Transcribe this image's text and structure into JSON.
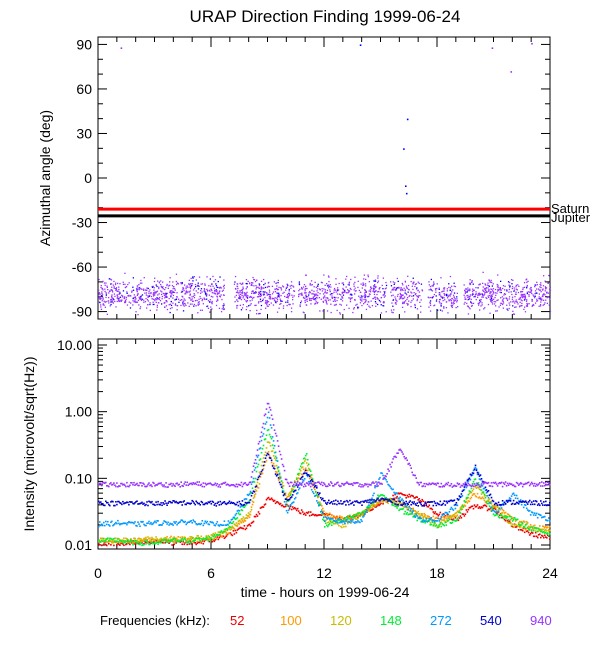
{
  "chart_data": [
    {
      "type": "scatter",
      "title": "URAP Direction Finding  1999-06-24",
      "ylabel": "Azimuthal angle (deg)",
      "xlim": [
        0,
        24
      ],
      "ylim": [
        -95,
        95
      ],
      "yticks": [
        90,
        60,
        30,
        0,
        -30,
        -60,
        -90
      ],
      "reference_lines": [
        {
          "name": "Saturn",
          "y": -21,
          "color": "#ff0000"
        },
        {
          "name": "Jupiter",
          "y": -25.5,
          "color": "#000000"
        }
      ],
      "scatter_band": {
        "center": -78,
        "spread": 7,
        "color": "#9933ff",
        "gaps": [
          [
            6.7,
            7.2
          ],
          [
            10.4,
            10.6
          ],
          [
            15.3,
            15.5
          ],
          [
            17.2,
            17.5
          ],
          [
            19.1,
            19.4
          ]
        ]
      },
      "outliers": [
        {
          "x": 1.2,
          "y": 88,
          "color": "#9933ff"
        },
        {
          "x": 13.9,
          "y": 90,
          "color": "#0000ff"
        },
        {
          "x": 16.2,
          "y": 20,
          "color": "#0000ff"
        },
        {
          "x": 16.3,
          "y": -5,
          "color": "#0000ff"
        },
        {
          "x": 16.35,
          "y": -10,
          "color": "#0000ff"
        },
        {
          "x": 16.4,
          "y": 40,
          "color": "#0000ff"
        },
        {
          "x": 20.9,
          "y": 88,
          "color": "#9933ff"
        },
        {
          "x": 21.9,
          "y": 72,
          "color": "#9933ff"
        },
        {
          "x": 23.0,
          "y": 91,
          "color": "#9933ff"
        },
        {
          "x": 11.0,
          "y": -65,
          "color": "#9933ff"
        }
      ]
    },
    {
      "type": "line",
      "ylabel": "Intensity (microvolt/sqrt(Hz))",
      "xlabel": "time - hours on 1999-06-24",
      "xlim": [
        0,
        24
      ],
      "ylim_log": [
        0.01,
        10
      ],
      "xticks": [
        0,
        6,
        12,
        18,
        24
      ],
      "xtick_labels": [
        "0",
        "6",
        "12",
        "18",
        "24"
      ],
      "yticks": [
        10,
        1,
        0.1,
        0.01
      ],
      "ytick_labels": [
        "10.00",
        "1.00",
        "0.10",
        "0.01"
      ],
      "x": [
        0,
        1,
        2,
        3,
        4,
        5,
        6,
        7,
        8,
        9,
        10,
        11,
        12,
        13,
        14,
        15,
        16,
        17,
        18,
        19,
        20,
        21,
        22,
        23,
        24
      ],
      "series": [
        {
          "name": "940",
          "color": "#9933ff",
          "values": [
            0.082,
            0.083,
            0.082,
            0.083,
            0.082,
            0.085,
            0.082,
            0.083,
            0.083,
            1.5,
            0.085,
            0.083,
            0.084,
            0.083,
            0.083,
            0.085,
            0.3,
            0.083,
            0.082,
            0.082,
            0.083,
            0.084,
            0.083,
            0.084,
            0.083
          ]
        },
        {
          "name": "540",
          "color": "#0000cc",
          "values": [
            0.044,
            0.043,
            0.044,
            0.043,
            0.044,
            0.044,
            0.043,
            0.043,
            0.044,
            0.25,
            0.045,
            0.13,
            0.045,
            0.044,
            0.044,
            0.05,
            0.044,
            0.043,
            0.043,
            0.045,
            0.15,
            0.044,
            0.045,
            0.044,
            0.043
          ]
        },
        {
          "name": "272",
          "color": "#0099ff",
          "values": [
            0.021,
            0.022,
            0.021,
            0.022,
            0.022,
            0.023,
            0.021,
            0.022,
            0.06,
            1.0,
            0.03,
            0.12,
            0.025,
            0.023,
            0.024,
            0.12,
            0.05,
            0.025,
            0.024,
            0.04,
            0.15,
            0.03,
            0.06,
            0.03,
            0.025
          ]
        },
        {
          "name": "148",
          "color": "#00ee33",
          "values": [
            0.012,
            0.012,
            0.011,
            0.011,
            0.012,
            0.012,
            0.013,
            0.02,
            0.05,
            0.6,
            0.04,
            0.25,
            0.02,
            0.025,
            0.03,
            0.06,
            0.035,
            0.025,
            0.02,
            0.025,
            0.1,
            0.03,
            0.025,
            0.018,
            0.015
          ]
        },
        {
          "name": "120",
          "color": "#ccbb00",
          "values": [
            0.012,
            0.012,
            0.012,
            0.013,
            0.012,
            0.013,
            0.014,
            0.018,
            0.03,
            0.4,
            0.05,
            0.2,
            0.025,
            0.02,
            0.03,
            0.05,
            0.04,
            0.03,
            0.02,
            0.03,
            0.08,
            0.04,
            0.02,
            0.018,
            0.016
          ]
        },
        {
          "name": "100",
          "color": "#ff9900",
          "values": [
            0.012,
            0.012,
            0.012,
            0.012,
            0.013,
            0.012,
            0.013,
            0.017,
            0.028,
            0.25,
            0.05,
            0.15,
            0.03,
            0.025,
            0.03,
            0.05,
            0.045,
            0.03,
            0.025,
            0.03,
            0.06,
            0.04,
            0.025,
            0.02,
            0.018
          ]
        },
        {
          "name": "52",
          "color": "#ee0000",
          "values": [
            0.01,
            0.011,
            0.011,
            0.012,
            0.011,
            0.011,
            0.012,
            0.015,
            0.02,
            0.05,
            0.04,
            0.03,
            0.03,
            0.025,
            0.03,
            0.045,
            0.06,
            0.05,
            0.03,
            0.025,
            0.04,
            0.035,
            0.02,
            0.015,
            0.013
          ]
        }
      ]
    }
  ],
  "legend": {
    "label": "Frequencies (kHz):",
    "items": [
      {
        "text": "52",
        "color": "#ee0000"
      },
      {
        "text": "100",
        "color": "#ff9900"
      },
      {
        "text": "120",
        "color": "#ccbb00"
      },
      {
        "text": "148",
        "color": "#00ee33"
      },
      {
        "text": "272",
        "color": "#0099ff"
      },
      {
        "text": "540",
        "color": "#0000cc"
      },
      {
        "text": "940",
        "color": "#9933ff"
      }
    ]
  }
}
